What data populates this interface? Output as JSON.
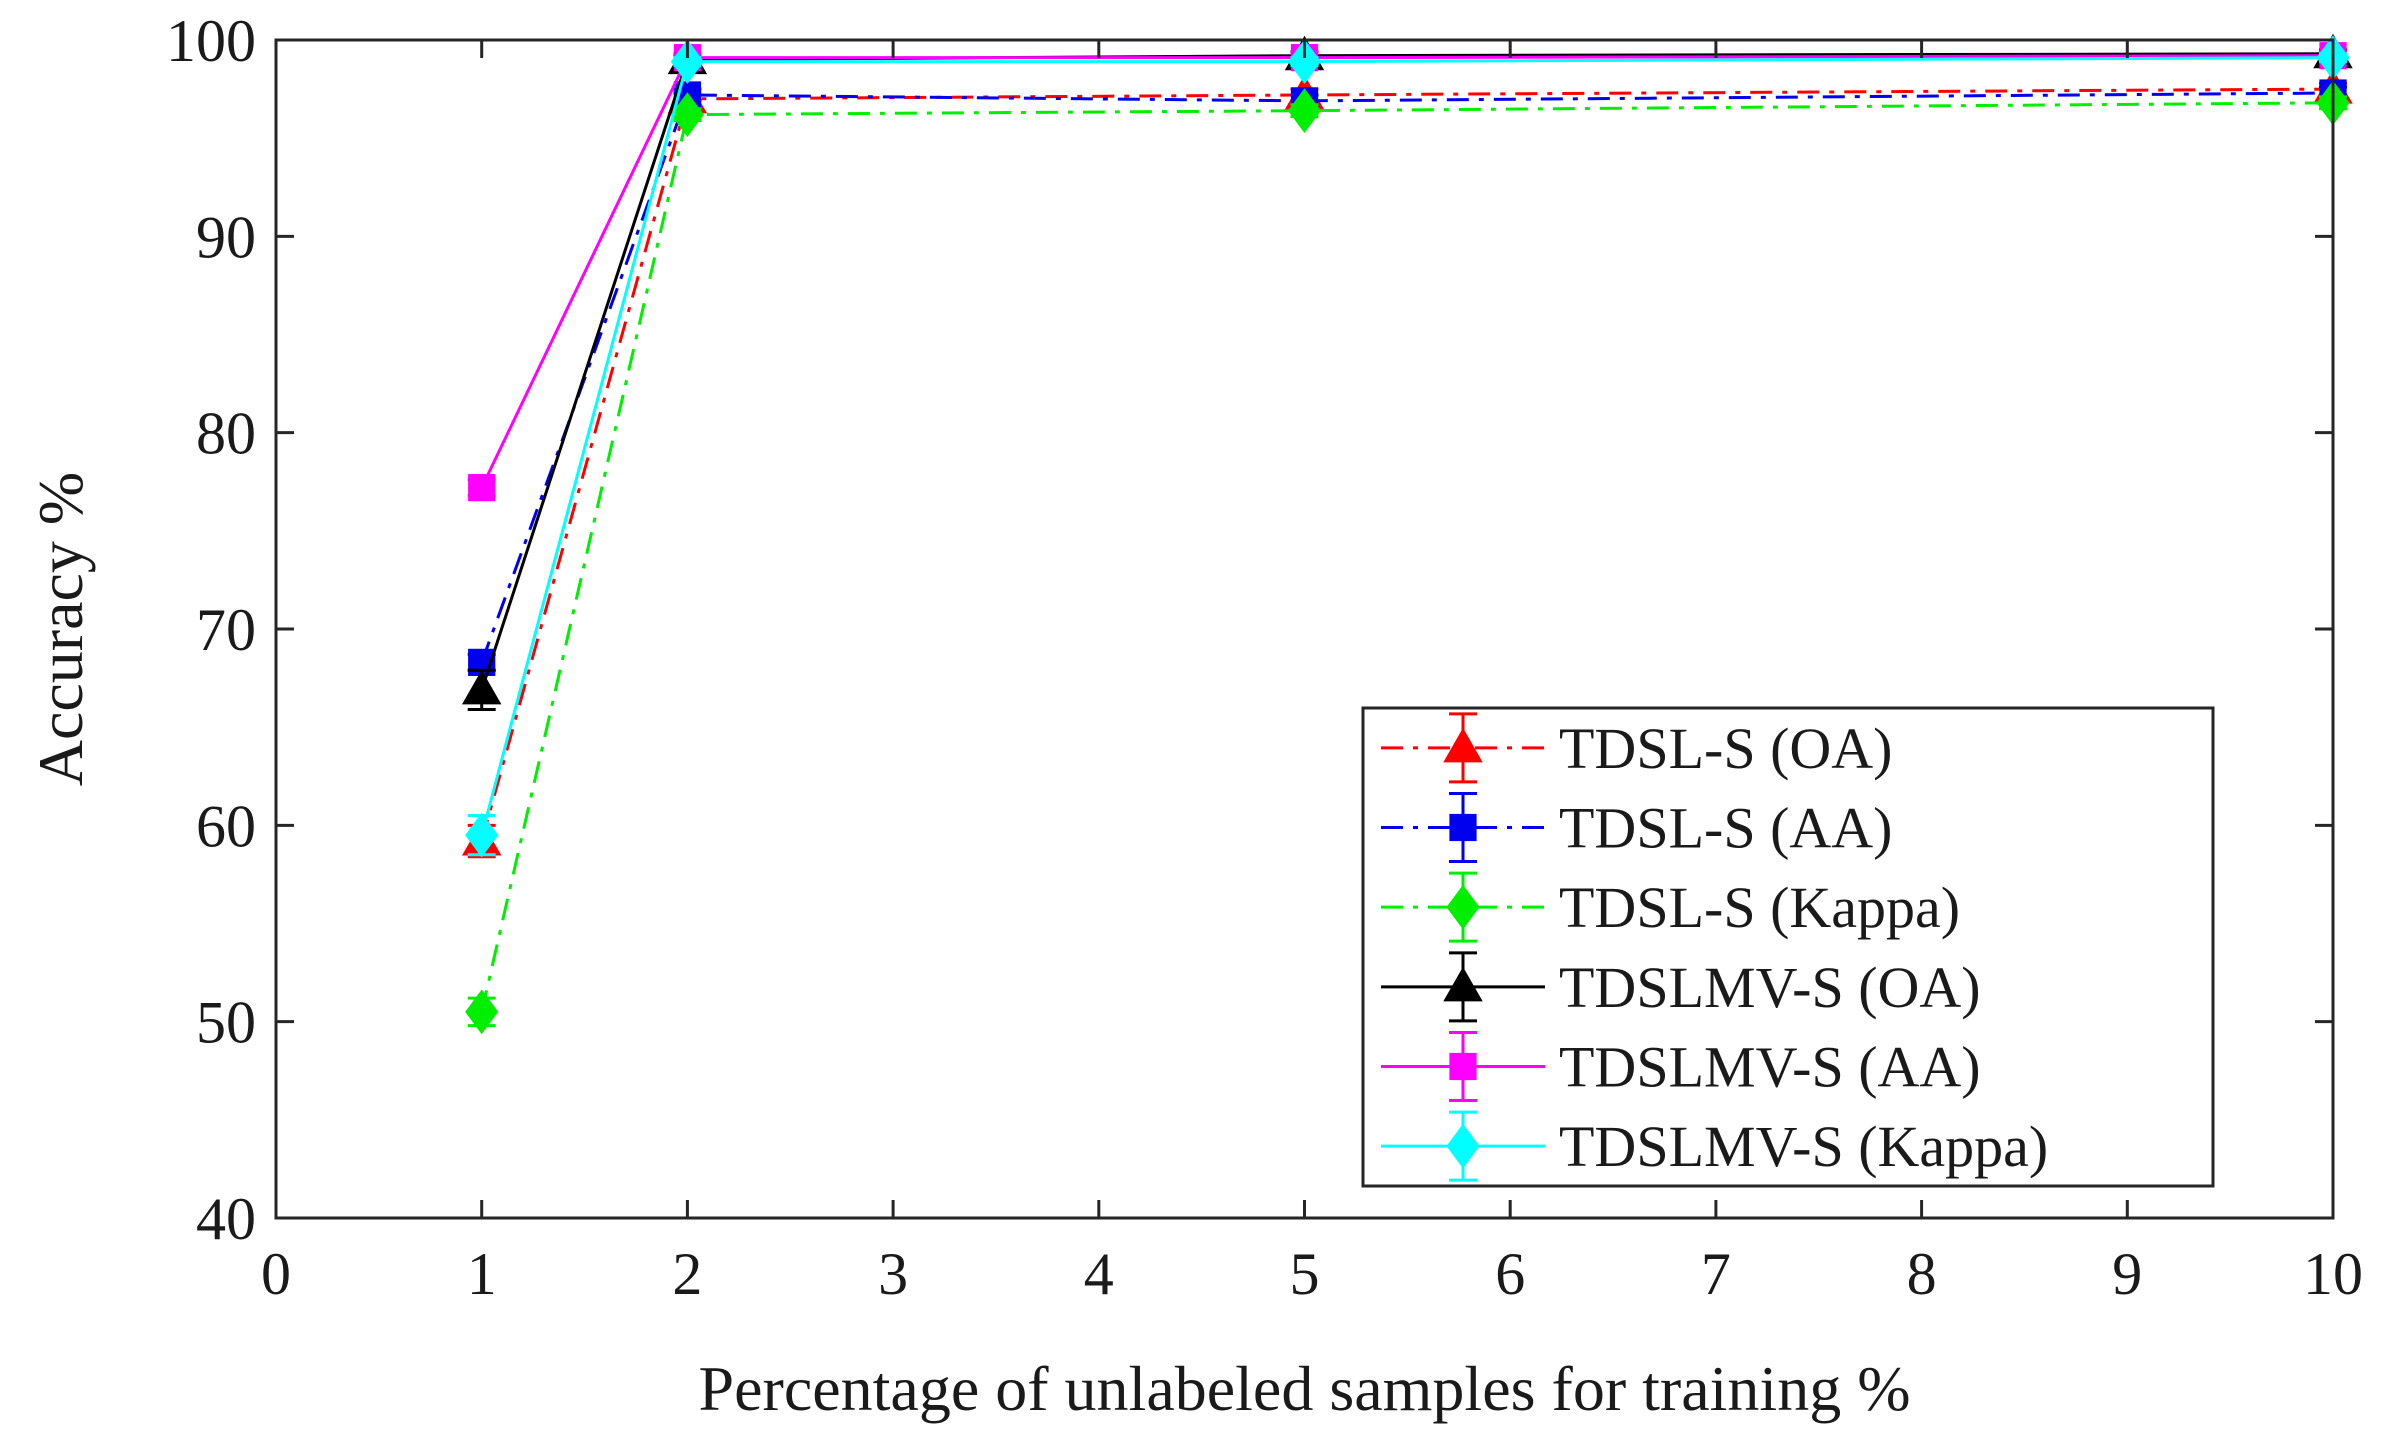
{
  "chart_data": {
    "type": "line",
    "title": "",
    "xlabel": "Percentage of unlabeled samples for training %",
    "ylabel": "Accuracy %",
    "xlim": [
      0,
      10
    ],
    "ylim": [
      40,
      100
    ],
    "xticks": [
      0,
      1,
      2,
      3,
      4,
      5,
      6,
      7,
      8,
      9,
      10
    ],
    "yticks": [
      40,
      50,
      60,
      70,
      80,
      90,
      100
    ],
    "grid": false,
    "legend_position": "bottom-right",
    "x": [
      1,
      2,
      5,
      10
    ],
    "series": [
      {
        "name": "TDSL-S (OA)",
        "values": [
          59.2,
          97.0,
          97.2,
          97.5
        ],
        "errors": [
          0.8,
          0.3,
          0.3,
          0.3
        ],
        "color": "#ff0000",
        "dash": "dashdot",
        "marker": "triangle"
      },
      {
        "name": "TDSL-S (AA)",
        "values": [
          68.3,
          97.2,
          96.9,
          97.3
        ],
        "errors": [
          0.4,
          0.3,
          0.3,
          0.3
        ],
        "color": "#0000ee",
        "dash": "dashdot",
        "marker": "square"
      },
      {
        "name": "TDSL-S (Kappa)",
        "values": [
          50.5,
          96.2,
          96.4,
          96.8
        ],
        "errors": [
          0.7,
          0.3,
          0.3,
          0.3
        ],
        "color": "#00ee00",
        "dash": "dashdot",
        "marker": "diamond"
      },
      {
        "name": "TDSLMV-S (OA)",
        "values": [
          66.9,
          99.0,
          99.2,
          99.3
        ],
        "errors": [
          1.0,
          0.2,
          0.2,
          0.2
        ],
        "color": "#000000",
        "dash": "solid",
        "marker": "triangle"
      },
      {
        "name": "TDSLMV-S (AA)",
        "values": [
          77.2,
          99.1,
          99.1,
          99.2
        ],
        "errors": [
          0.4,
          0.2,
          0.2,
          0.2
        ],
        "color": "#ff00ff",
        "dash": "solid",
        "marker": "square"
      },
      {
        "name": "TDSLMV-S (Kappa)",
        "values": [
          59.5,
          98.9,
          98.9,
          99.1
        ],
        "errors": [
          1.0,
          0.2,
          0.2,
          0.2
        ],
        "color": "#00ffff",
        "dash": "solid",
        "marker": "diamond"
      }
    ]
  }
}
